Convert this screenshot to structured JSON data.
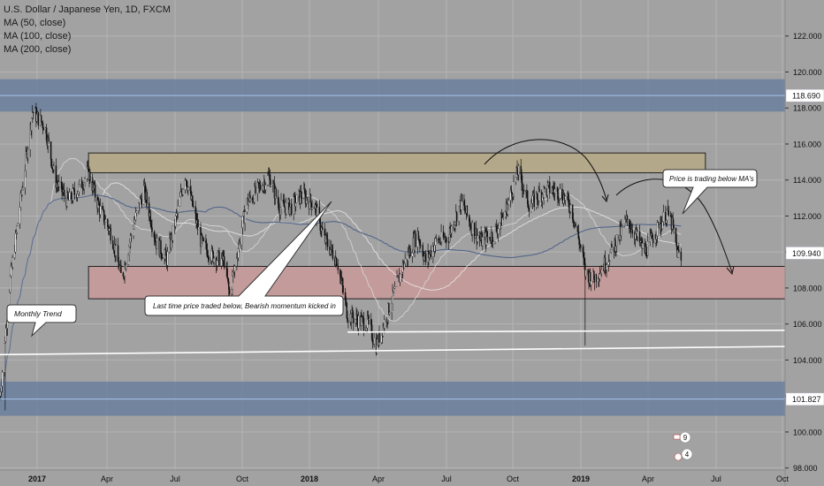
{
  "legend": {
    "title": "U.S. Dollar / Japanese Yen, 1D, FXCM",
    "ma50": "MA (50, close)",
    "ma100": "MA (100, close)",
    "ma200": "MA (200, close)"
  },
  "price_tags": {
    "upper": "118.690",
    "current": "109.940",
    "lower": "101.827"
  },
  "annotations": {
    "monthly_trend": "Monthly Trend",
    "bearish_note": "Last time price traded below, Bearish momentum kicked in",
    "ma_note": "Price is trading below MA's"
  },
  "event_badges": {
    "flag_count": "9",
    "other_count": "4"
  },
  "colors": {
    "background": "#a2a2a2",
    "grid": "#b4b4b4",
    "candle_up": "#ffffff",
    "candle_down": "#111111",
    "ma50": "#d8d8d8",
    "ma100": "#e8e8e8",
    "ma200": "#4a5f86",
    "blue_zone": "#6a7f9d",
    "resistance_zone": "#b3a889",
    "support_zone": "#c49b9b",
    "price_line": "#a9c4ee",
    "trend_line": "#ffffff"
  },
  "chart_data": {
    "type": "candlestick",
    "title": "U.S. Dollar / Japanese Yen, 1D, FXCM",
    "ylim": [
      97.0,
      124.0
    ],
    "y_ticks": [
      "98.000",
      "100.000",
      "102.000",
      "104.000",
      "106.000",
      "108.000",
      "110.000",
      "112.000",
      "114.000",
      "116.000",
      "118.000",
      "120.000",
      "122.000"
    ],
    "x_ticks": [
      "2017",
      "Apr",
      "Jul",
      "Oct",
      "2018",
      "Apr",
      "Jul",
      "Oct",
      "2019",
      "Apr",
      "Jul",
      "Oct"
    ],
    "x_range": [
      "2016-11-01",
      "2019-10-01"
    ],
    "close_path": [
      [
        "2016-11-01",
        102.0
      ],
      [
        "2016-11-15",
        108.5
      ],
      [
        "2016-12-01",
        113.5
      ],
      [
        "2016-12-15",
        117.8
      ],
      [
        "2017-01-01",
        117.0
      ],
      [
        "2017-01-15",
        114.0
      ],
      [
        "2017-02-01",
        112.8
      ],
      [
        "2017-02-15",
        113.5
      ],
      [
        "2017-03-01",
        114.4
      ],
      [
        "2017-03-15",
        112.5
      ],
      [
        "2017-04-01",
        111.0
      ],
      [
        "2017-04-15",
        108.5
      ],
      [
        "2017-05-01",
        111.5
      ],
      [
        "2017-05-15",
        113.5
      ],
      [
        "2017-06-01",
        110.5
      ],
      [
        "2017-06-15",
        109.6
      ],
      [
        "2017-07-01",
        112.5
      ],
      [
        "2017-07-10",
        114.3
      ],
      [
        "2017-08-01",
        110.5
      ],
      [
        "2017-08-15",
        109.8
      ],
      [
        "2017-09-01",
        109.5
      ],
      [
        "2017-09-08",
        107.6
      ],
      [
        "2017-10-01",
        112.7
      ],
      [
        "2017-11-01",
        114.2
      ],
      [
        "2017-11-15",
        112.5
      ],
      [
        "2017-12-01",
        112.5
      ],
      [
        "2017-12-15",
        113.2
      ],
      [
        "2018-01-01",
        112.6
      ],
      [
        "2018-01-15",
        110.7
      ],
      [
        "2018-02-01",
        109.5
      ],
      [
        "2018-02-15",
        106.5
      ],
      [
        "2018-03-01",
        106.2
      ],
      [
        "2018-03-15",
        106.0
      ],
      [
        "2018-03-26",
        104.8
      ],
      [
        "2018-04-15",
        107.2
      ],
      [
        "2018-05-01",
        109.2
      ],
      [
        "2018-05-21",
        111.0
      ],
      [
        "2018-06-01",
        109.5
      ],
      [
        "2018-06-15",
        110.6
      ],
      [
        "2018-07-01",
        110.8
      ],
      [
        "2018-07-19",
        112.8
      ],
      [
        "2018-08-01",
        111.5
      ],
      [
        "2018-08-15",
        110.6
      ],
      [
        "2018-09-01",
        111.0
      ],
      [
        "2018-09-15",
        112.0
      ],
      [
        "2018-10-04",
        114.5
      ],
      [
        "2018-10-20",
        112.5
      ],
      [
        "2018-11-01",
        113.2
      ],
      [
        "2018-11-15",
        113.5
      ],
      [
        "2018-12-01",
        113.3
      ],
      [
        "2018-12-15",
        112.5
      ],
      [
        "2018-12-31",
        109.7
      ],
      [
        "2019-01-03",
        108.8
      ],
      [
        "2019-01-15",
        108.5
      ],
      [
        "2019-02-01",
        109.5
      ],
      [
        "2019-03-01",
        111.8
      ],
      [
        "2019-03-25",
        110.0
      ],
      [
        "2019-04-10",
        111.2
      ],
      [
        "2019-04-24",
        112.2
      ],
      [
        "2019-05-01",
        111.5
      ],
      [
        "2019-05-08",
        110.0
      ],
      [
        "2019-05-13",
        109.5
      ]
    ],
    "levels": {
      "upper_tag": 118.69,
      "current_tag": 109.94,
      "lower_tag": 101.827
    },
    "zones": [
      {
        "kind": "blue",
        "y_from": 117.8,
        "y_to": 119.6,
        "x_from": "2016-11-01",
        "x_to": "2019-10-01"
      },
      {
        "kind": "resistance",
        "y_from": 114.4,
        "y_to": 115.5,
        "x_from": "2017-03-01",
        "x_to": "2019-06-15"
      },
      {
        "kind": "support",
        "y_from": 107.4,
        "y_to": 109.2,
        "x_from": "2017-03-01",
        "x_to": "2019-10-01"
      },
      {
        "kind": "blue",
        "y_from": 100.9,
        "y_to": 102.8,
        "x_from": "2016-11-01",
        "x_to": "2019-10-01"
      }
    ],
    "trend_lines": [
      {
        "from": [
          "2016-11-01",
          104.3
        ],
        "to": [
          "2019-10-01",
          104.75
        ]
      },
      {
        "from": [
          "2018-02-15",
          105.55
        ],
        "to": [
          "2019-10-01",
          105.65
        ]
      }
    ],
    "grid": true,
    "legend_position": "top-left",
    "moving_averages": [
      {
        "name": "MA (50, close)",
        "color": "#d8d8d8"
      },
      {
        "name": "MA (100, close)",
        "color": "#e8e8e8"
      },
      {
        "name": "MA (200, close)",
        "color": "#4a5f86"
      }
    ]
  }
}
